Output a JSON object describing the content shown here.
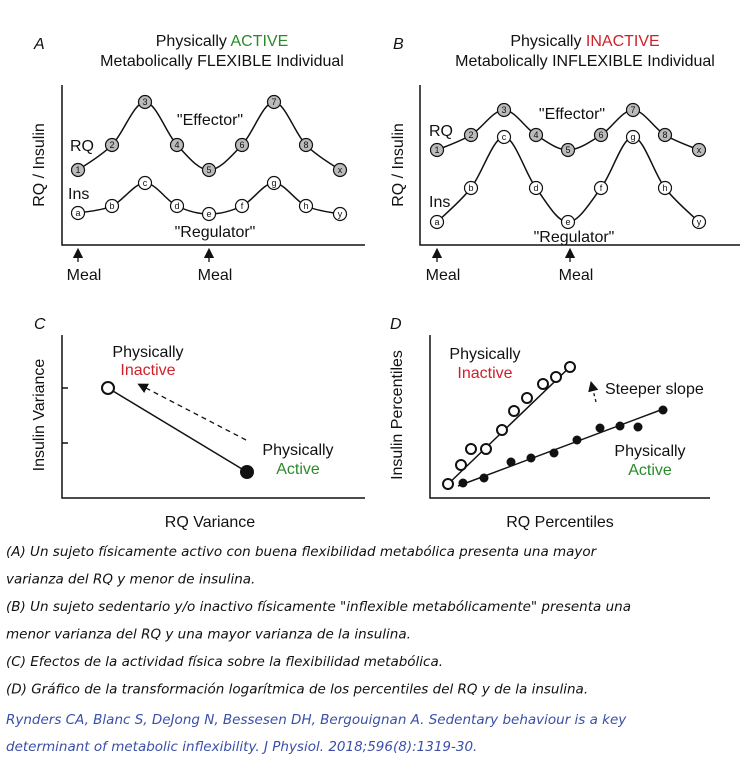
{
  "panels": [
    {
      "letter": "A",
      "title_prefix": "Physically ",
      "title_highlight": "ACTIVE",
      "title_line2": "Metabolically FLEXIBLE Individual",
      "y_axis": "RQ / Insulin",
      "rq_label": "RQ",
      "ins_label": "Ins",
      "effector": "\"Effector\"",
      "regulator": "\"Regulator\"",
      "meal_labels": [
        "Meal",
        "Meal"
      ],
      "rq_nodes": [
        "1",
        "2",
        "3",
        "4",
        "5",
        "6",
        "7",
        "8",
        "x"
      ],
      "ins_nodes": [
        "a",
        "b",
        "c",
        "d",
        "e",
        "f",
        "g",
        "h",
        "y"
      ]
    },
    {
      "letter": "B",
      "title_prefix": "Physically ",
      "title_highlight": "INACTIVE",
      "title_line2": "Metabolically INFLEXIBLE Individual",
      "y_axis": "RQ / Insulin",
      "rq_label": "RQ",
      "ins_label": "Ins",
      "effector": "\"Effector\"",
      "regulator": "\"Regulator\"",
      "meal_labels": [
        "Meal",
        "Meal"
      ],
      "rq_nodes": [
        "1",
        "2",
        "3",
        "4",
        "5",
        "6",
        "7",
        "8",
        "x"
      ],
      "ins_nodes": [
        "a",
        "b",
        "c",
        "d",
        "e",
        "f",
        "g",
        "h",
        "y"
      ]
    }
  ],
  "panel_c": {
    "letter": "C",
    "x_axis": "RQ Variance",
    "y_axis": "Insulin Variance",
    "inactive_line1": "Physically",
    "inactive_line2": "Inactive",
    "active_line1": "Physically",
    "active_line2": "Active"
  },
  "panel_d": {
    "letter": "D",
    "x_axis": "RQ Percentiles",
    "y_axis": "Insulin Percentiles",
    "inactive_line1": "Physically",
    "inactive_line2": "Inactive",
    "active_line1": "Physically",
    "active_line2": "Active",
    "slope_note": "Steeper slope"
  },
  "caption": [
    "(A) Un sujeto físicamente activo con buena flexibilidad metabólica presenta una mayor",
    "varianza del RQ y menor de insulina.",
    "(B) Un sujeto sedentario y/o inactivo físicamente \"inflexible metabólicamente\" presenta una",
    "menor varianza del RQ y una mayor varianza de la insulina.",
    "(C) Efectos de la actividad física sobre la flexibilidad metabólica.",
    "(D) Gráfico de la transformación logarítmica de los percentiles del RQ y de la insulina."
  ],
  "citation": [
    "Rynders CA, Blanc S, DeJong N, Bessesen DH, Bergouignan A. Sedentary behaviour is a key",
    "determinant of metabolic inflexibility. J Physiol. 2018;596(8):1319-30."
  ]
}
